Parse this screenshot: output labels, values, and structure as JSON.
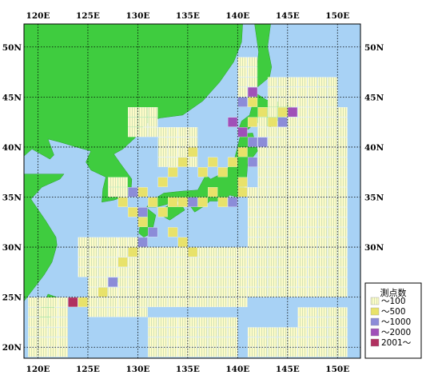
{
  "map": {
    "lon_range": [
      118.6,
      152.3
    ],
    "lat_range": [
      18.9,
      52.3
    ],
    "lon_ticks": [
      {
        "value": 120,
        "label": "120E"
      },
      {
        "value": 125,
        "label": "125E"
      },
      {
        "value": 130,
        "label": "130E"
      },
      {
        "value": 135,
        "label": "135E"
      },
      {
        "value": 140,
        "label": "140E"
      },
      {
        "value": 145,
        "label": "145E"
      },
      {
        "value": 150,
        "label": "150E"
      }
    ],
    "lat_ticks": [
      {
        "value": 50,
        "label": "50N"
      },
      {
        "value": 45,
        "label": "45N"
      },
      {
        "value": 40,
        "label": "40N"
      },
      {
        "value": 35,
        "label": "35N"
      },
      {
        "value": 30,
        "label": "30N"
      },
      {
        "value": 25,
        "label": "25N"
      },
      {
        "value": 20,
        "label": "20N"
      }
    ],
    "gridlines": "dotted",
    "colors": {
      "sea": "#a8d2f5",
      "land": "#3fcc3f",
      "bin_lt100": "#fdfbc8",
      "bin_500": "#e8e26a",
      "bin_1000": "#8c8cd8",
      "bin_2000": "#a050b8",
      "bin_2001": "#b03060"
    }
  },
  "legend": {
    "title": "測点数",
    "placement": "lower-right",
    "items": [
      {
        "label": "～100",
        "color": "#fdfbc8"
      },
      {
        "label": "～500",
        "color": "#e8e26a"
      },
      {
        "label": "～1000",
        "color": "#8c8cd8"
      },
      {
        "label": "～2000",
        "color": "#a050b8"
      },
      {
        "label": "2001～",
        "color": "#b03060"
      }
    ]
  },
  "bins": {
    "cell_size_deg": 1,
    "regions_lt100": [
      [
        140,
        142,
        45,
        49
      ],
      [
        143,
        150,
        44,
        47
      ],
      [
        142,
        151,
        36,
        44
      ],
      [
        141,
        151,
        25,
        36
      ],
      [
        130,
        141,
        24,
        30
      ],
      [
        125,
        131,
        23,
        27
      ],
      [
        124,
        131,
        27,
        31
      ],
      [
        132,
        136,
        38,
        42
      ],
      [
        129,
        132,
        41,
        44
      ],
      [
        127,
        129,
        35,
        37
      ],
      [
        119,
        123,
        19,
        25
      ],
      [
        131,
        140,
        19,
        23
      ],
      [
        146,
        151,
        19,
        24
      ],
      [
        141,
        146,
        19,
        22
      ]
    ],
    "high_lon_cells": [
      {
        "lon": 128,
        "lat": 34,
        "cls": "bin_500"
      },
      {
        "lon": 129,
        "lat": 33,
        "cls": "bin_500"
      },
      {
        "lon": 130,
        "lat": 33,
        "cls": "bin_1000"
      },
      {
        "lon": 130,
        "lat": 32,
        "cls": "bin_500"
      },
      {
        "lon": 131,
        "lat": 31,
        "cls": "bin_1000"
      },
      {
        "lon": 130,
        "lat": 30,
        "cls": "bin_1000"
      },
      {
        "lon": 129,
        "lat": 29,
        "cls": "bin_500"
      },
      {
        "lon": 128,
        "lat": 28,
        "cls": "bin_500"
      },
      {
        "lon": 127,
        "lat": 26,
        "cls": "bin_1000"
      },
      {
        "lon": 126,
        "lat": 25,
        "cls": "bin_500"
      },
      {
        "lon": 124,
        "lat": 24,
        "cls": "bin_500"
      },
      {
        "lon": 123,
        "lat": 24,
        "cls": "bin_2001"
      },
      {
        "lon": 131,
        "lat": 34,
        "cls": "bin_500"
      },
      {
        "lon": 132,
        "lat": 33,
        "cls": "bin_500"
      },
      {
        "lon": 133,
        "lat": 34,
        "cls": "bin_500"
      },
      {
        "lon": 134,
        "lat": 34,
        "cls": "bin_500"
      },
      {
        "lon": 135,
        "lat": 34,
        "cls": "bin_1000"
      },
      {
        "lon": 136,
        "lat": 34,
        "cls": "bin_500"
      },
      {
        "lon": 137,
        "lat": 35,
        "cls": "bin_500"
      },
      {
        "lon": 138,
        "lat": 34,
        "cls": "bin_500"
      },
      {
        "lon": 139,
        "lat": 34,
        "cls": "bin_1000"
      },
      {
        "lon": 140,
        "lat": 35,
        "cls": "bin_500"
      },
      {
        "lon": 140,
        "lat": 36,
        "cls": "bin_500"
      },
      {
        "lon": 138,
        "lat": 37,
        "cls": "bin_500"
      },
      {
        "lon": 139,
        "lat": 38,
        "cls": "bin_500"
      },
      {
        "lon": 140,
        "lat": 39,
        "cls": "bin_500"
      },
      {
        "lon": 141,
        "lat": 40,
        "cls": "bin_1000"
      },
      {
        "lon": 140,
        "lat": 41,
        "cls": "bin_2000"
      },
      {
        "lon": 141,
        "lat": 42,
        "cls": "bin_500"
      },
      {
        "lon": 141,
        "lat": 44,
        "cls": "bin_500"
      },
      {
        "lon": 141,
        "lat": 45,
        "cls": "bin_2000"
      },
      {
        "lon": 140,
        "lat": 44,
        "cls": "bin_1000"
      },
      {
        "lon": 142,
        "lat": 43,
        "cls": "bin_500"
      },
      {
        "lon": 144,
        "lat": 43,
        "cls": "bin_500"
      },
      {
        "lon": 145,
        "lat": 43,
        "cls": "bin_2000"
      },
      {
        "lon": 144,
        "lat": 42,
        "cls": "bin_1000"
      },
      {
        "lon": 143,
        "lat": 42,
        "cls": "bin_500"
      },
      {
        "lon": 139,
        "lat": 42,
        "cls": "bin_2000"
      },
      {
        "lon": 142,
        "lat": 40,
        "cls": "bin_1000"
      },
      {
        "lon": 141,
        "lat": 38,
        "cls": "bin_1000"
      },
      {
        "lon": 133,
        "lat": 37,
        "cls": "bin_500"
      },
      {
        "lon": 134,
        "lat": 38,
        "cls": "bin_500"
      },
      {
        "lon": 135,
        "lat": 39,
        "cls": "bin_500"
      },
      {
        "lon": 136,
        "lat": 37,
        "cls": "bin_500"
      },
      {
        "lon": 137,
        "lat": 38,
        "cls": "bin_500"
      },
      {
        "lon": 132,
        "lat": 36,
        "cls": "bin_500"
      },
      {
        "lon": 129,
        "lat": 35,
        "cls": "bin_1000"
      },
      {
        "lon": 130,
        "lat": 35,
        "cls": "bin_500"
      },
      {
        "lon": 134,
        "lat": 30,
        "cls": "bin_500"
      },
      {
        "lon": 135,
        "lat": 29,
        "cls": "bin_500"
      },
      {
        "lon": 133,
        "lat": 31,
        "cls": "bin_500"
      }
    ]
  }
}
